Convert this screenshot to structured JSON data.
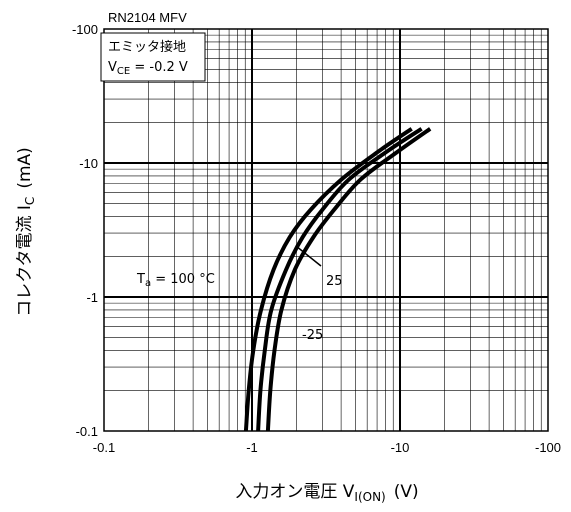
{
  "chart_data": {
    "type": "line",
    "title": "RN2104 MFV",
    "xlabel": {
      "main": "入力オン電圧 V",
      "sub": "I(ON)",
      "unit": "(V)"
    },
    "ylabel": {
      "main": "コレクタ電流 I",
      "sub": "C",
      "unit": "(mA)"
    },
    "x_scale": "log",
    "y_scale": "log",
    "x_range": [
      -0.1,
      -100
    ],
    "y_range": [
      -0.1,
      -100
    ],
    "x_ticks": [
      "-0.1",
      "-1",
      "-10",
      "-100"
    ],
    "y_ticks": [
      "-100",
      "-10",
      "-1",
      "-0.1"
    ],
    "grid": true,
    "condition_box": {
      "line1": "エミッタ接地",
      "line2_main": "V",
      "line2_sub": "CE",
      "line2_rest": " = -0.2 V"
    },
    "series": [
      {
        "name": "T_a = 100 °C",
        "label_parts": {
          "main": "T",
          "sub": "a",
          "rest": " = 100 °C"
        },
        "x": [
          -0.91,
          -0.95,
          -1.02,
          -1.15,
          -1.4,
          -1.8,
          -2.5,
          -4.0,
          -7.0,
          -12.0
        ],
        "y": [
          -0.1,
          -0.2,
          -0.4,
          -0.8,
          -1.6,
          -2.8,
          -4.5,
          -7.5,
          -12.0,
          -18.0
        ]
      },
      {
        "name": "25",
        "label_parts": {
          "main": "25",
          "sub": "",
          "rest": ""
        },
        "x": [
          -1.1,
          -1.14,
          -1.22,
          -1.35,
          -1.7,
          -2.2,
          -3.0,
          -4.5,
          -8.0,
          -14.0
        ],
        "y": [
          -0.1,
          -0.2,
          -0.4,
          -0.8,
          -1.6,
          -2.8,
          -4.5,
          -7.5,
          -12.0,
          -18.0
        ]
      },
      {
        "name": "-25",
        "label_parts": {
          "main": "-25",
          "sub": "",
          "rest": ""
        },
        "x": [
          -1.28,
          -1.33,
          -1.42,
          -1.58,
          -1.95,
          -2.6,
          -3.6,
          -5.4,
          -9.5,
          -16.0
        ],
        "y": [
          -0.1,
          -0.2,
          -0.4,
          -0.8,
          -1.6,
          -2.8,
          -4.5,
          -7.5,
          -12.0,
          -18.0
        ]
      }
    ]
  }
}
